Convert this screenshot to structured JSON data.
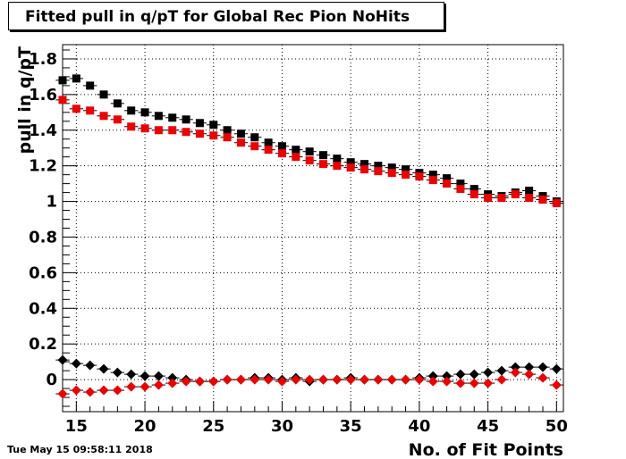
{
  "chart_data": {
    "type": "scatter",
    "title": "Fitted pull in q/pT for Global Rec Pion NoHits",
    "xlabel": "No. of Fit Points",
    "ylabel": "pull in q/pT",
    "xlim": [
      14,
      50.5
    ],
    "ylim": [
      -0.18,
      1.88
    ],
    "xticks": [
      15,
      20,
      25,
      30,
      35,
      40,
      45,
      50
    ],
    "xtick_labels": [
      "15",
      "20",
      "25",
      "30",
      "35",
      "40",
      "45",
      "50"
    ],
    "yticks": [
      0,
      0.2,
      0.4,
      0.6,
      0.8,
      1,
      1.2,
      1.4,
      1.6,
      1.8
    ],
    "ytick_labels": [
      "0",
      "0.2",
      "0.4",
      "0.6",
      "0.8",
      "1",
      "1.2",
      "1.4",
      "1.6",
      "1.8"
    ],
    "grid": true,
    "x": [
      14,
      15,
      16,
      17,
      18,
      19,
      20,
      21,
      22,
      23,
      24,
      25,
      26,
      27,
      28,
      29,
      30,
      31,
      32,
      33,
      34,
      35,
      36,
      37,
      38,
      39,
      40,
      41,
      42,
      43,
      44,
      45,
      46,
      47,
      48,
      49,
      50
    ],
    "series": [
      {
        "marker": "square",
        "color": "#000000",
        "values": [
          1.68,
          1.69,
          1.65,
          1.6,
          1.55,
          1.51,
          1.5,
          1.48,
          1.47,
          1.46,
          1.44,
          1.43,
          1.4,
          1.38,
          1.36,
          1.33,
          1.31,
          1.29,
          1.28,
          1.26,
          1.24,
          1.22,
          1.21,
          1.2,
          1.19,
          1.18,
          1.16,
          1.15,
          1.13,
          1.1,
          1.07,
          1.04,
          1.03,
          1.05,
          1.06,
          1.03,
          1.0
        ]
      },
      {
        "marker": "square",
        "color": "#ee0000",
        "values": [
          1.57,
          1.52,
          1.51,
          1.48,
          1.46,
          1.42,
          1.41,
          1.4,
          1.4,
          1.39,
          1.38,
          1.37,
          1.36,
          1.33,
          1.31,
          1.29,
          1.27,
          1.25,
          1.23,
          1.21,
          1.2,
          1.19,
          1.18,
          1.17,
          1.16,
          1.15,
          1.14,
          1.12,
          1.1,
          1.07,
          1.04,
          1.02,
          1.02,
          1.04,
          1.02,
          1.01,
          0.99
        ]
      },
      {
        "marker": "diamond",
        "color": "#000000",
        "values": [
          0.11,
          0.09,
          0.08,
          0.06,
          0.04,
          0.03,
          0.02,
          0.02,
          0.01,
          0.0,
          -0.01,
          -0.01,
          0.0,
          0.0,
          0.01,
          0.01,
          0.0,
          0.01,
          -0.01,
          0.0,
          0.0,
          0.01,
          0.0,
          0.0,
          0.0,
          0.0,
          0.01,
          0.02,
          0.02,
          0.03,
          0.03,
          0.04,
          0.05,
          0.07,
          0.07,
          0.07,
          0.06
        ]
      },
      {
        "marker": "diamond",
        "color": "#ee0000",
        "values": [
          -0.08,
          -0.06,
          -0.07,
          -0.06,
          -0.06,
          -0.04,
          -0.04,
          -0.03,
          -0.02,
          -0.01,
          -0.01,
          -0.01,
          0.0,
          0.0,
          0.0,
          0.0,
          -0.01,
          0.0,
          0.0,
          0.0,
          0.0,
          0.0,
          0.0,
          0.0,
          0.0,
          0.0,
          0.0,
          -0.01,
          -0.01,
          -0.02,
          -0.02,
          -0.02,
          0.0,
          0.04,
          0.03,
          0.01,
          -0.03
        ]
      }
    ]
  },
  "footer": {
    "timestamp": "Tue May 15 09:58:11 2018"
  }
}
